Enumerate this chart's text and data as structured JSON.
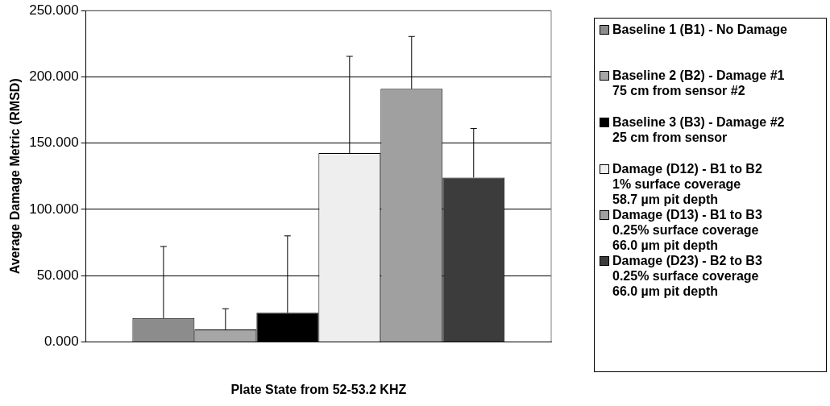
{
  "chart_data": {
    "type": "bar",
    "xlabel": "Plate State from 52-53.2 KHZ",
    "ylabel": "Average Damage Metric (RMSD)",
    "categories": [
      null
    ],
    "series": [
      {
        "name": "Baseline 1 (B1) - No Damage",
        "color": "#8c8c8c",
        "values": [
          18
        ],
        "errors": [
          [
            18,
            72
          ]
        ]
      },
      {
        "name": "Baseline 2 (B2) - Damage #1\n75 cm from sensor #2",
        "color": "#a6a6a6",
        "values": [
          9.4
        ],
        "errors": [
          [
            9.4,
            25
          ]
        ]
      },
      {
        "name": "Baseline 3 (B3) - Damage #2\n25 cm from sensor",
        "color": "#000000",
        "values": [
          22
        ],
        "errors": [
          [
            22,
            80
          ]
        ]
      },
      {
        "name": "Damage (D12) - B1 to B2\n1% surface coverage\n58.7 µm pit depth",
        "color": "#eeeeee",
        "values": [
          142.5
        ],
        "errors": [
          [
            142.5,
            215.5
          ]
        ]
      },
      {
        "name": "Damage (D13) - B1 to B3\n0.25% surface coverage\n66.0 µm pit depth",
        "color": "#a0a0a0",
        "values": [
          191
        ],
        "errors": [
          [
            191,
            230.5
          ]
        ]
      },
      {
        "name": "Damage (D23) - B2 to B3\n0.25% surface coverage\n66.0 µm pit depth",
        "color": "#3c3c3c",
        "values": [
          124
        ],
        "errors": [
          [
            124,
            161
          ]
        ]
      }
    ],
    "ylim": [
      0,
      250
    ],
    "yticks": [
      {
        "value": 0,
        "label": "0.000"
      },
      {
        "value": 50,
        "label": "50.000"
      },
      {
        "value": 100,
        "label": "100.000"
      },
      {
        "value": 150,
        "label": "150.000"
      },
      {
        "value": 200,
        "label": "200.000"
      },
      {
        "value": 250,
        "label": "250.000"
      }
    ],
    "grid": "y",
    "legend": "right"
  }
}
